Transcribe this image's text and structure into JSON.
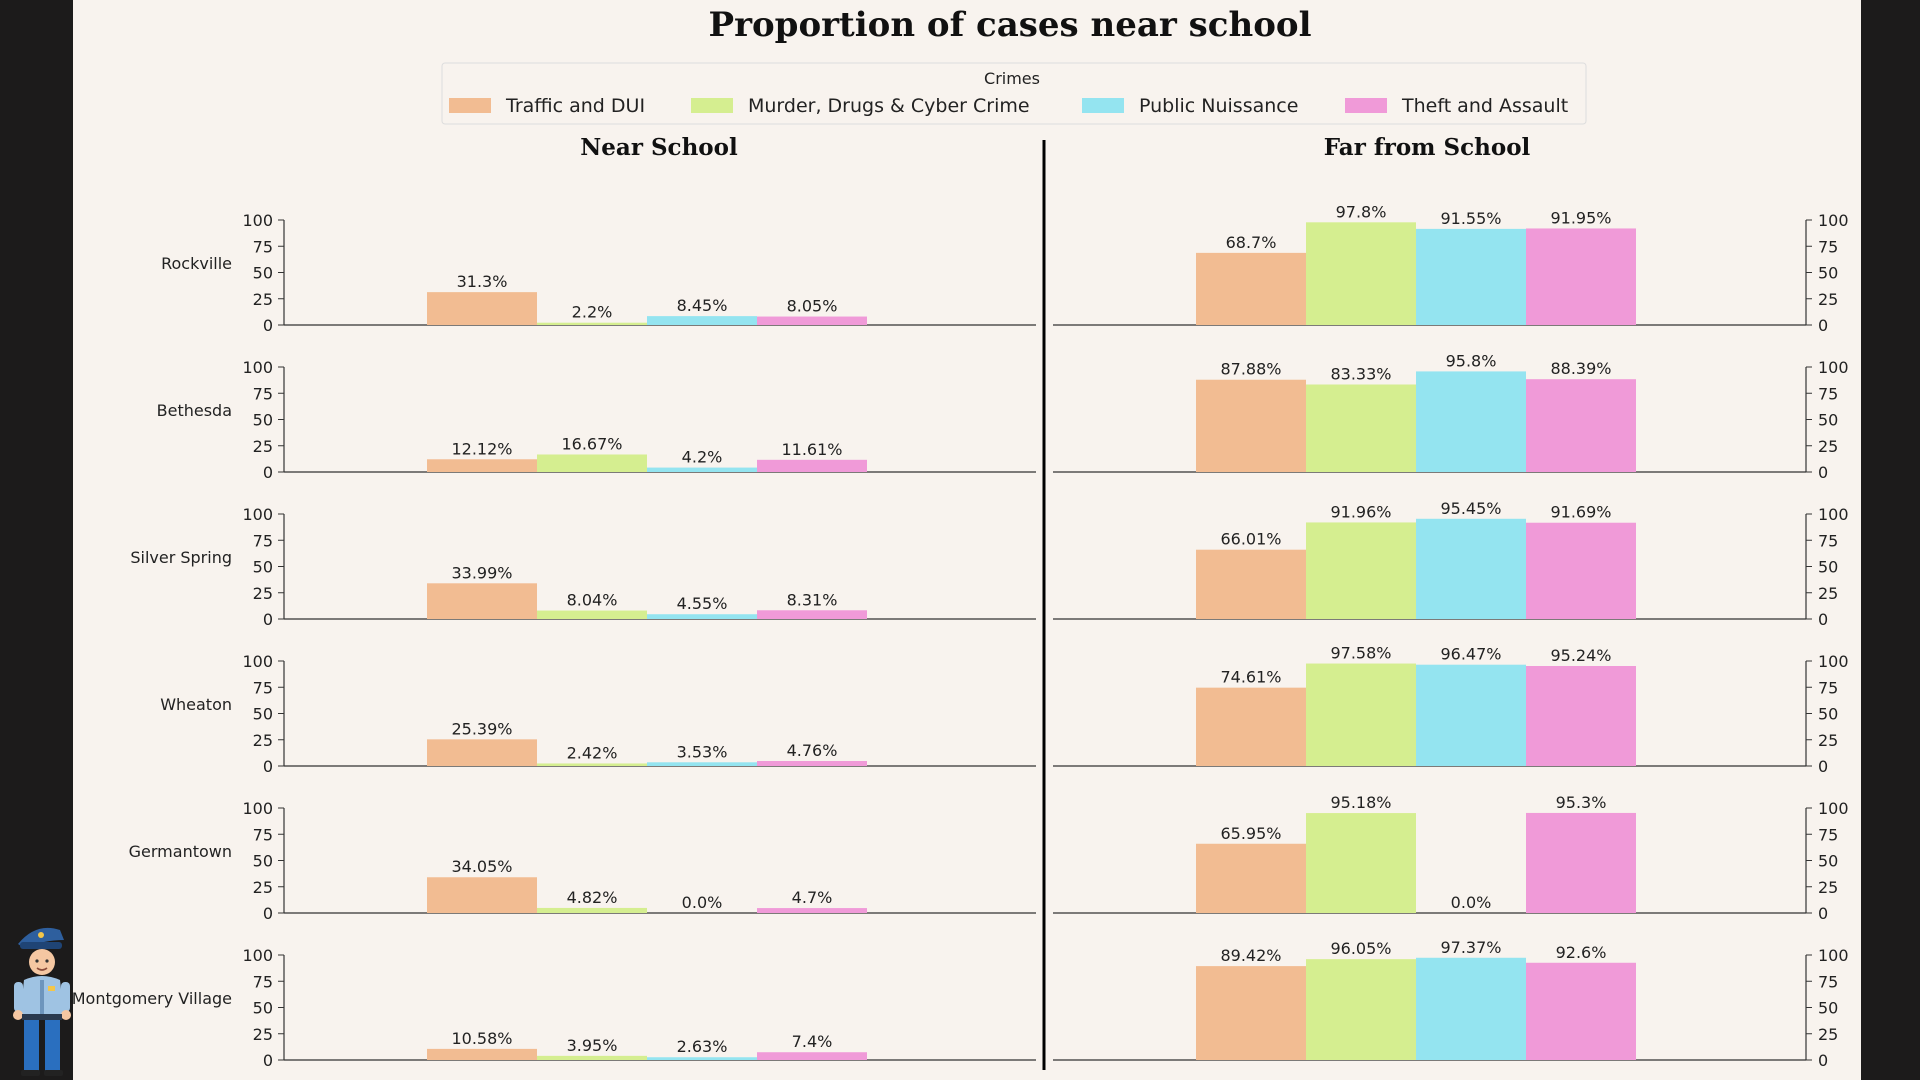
{
  "chart_data": {
    "type": "bar",
    "title": "Proportion of cases near school",
    "legend": {
      "title": "Crimes",
      "placement": "top-center",
      "entries": [
        "Traffic and DUI",
        "Murder, Drugs & Cyber Crime",
        "Public Nuissance",
        "Theft and Assault"
      ]
    },
    "colors": [
      "#f2bc92",
      "#d5ee90",
      "#94e4f0",
      "#f09ad8"
    ],
    "panels": [
      {
        "title": "Near School",
        "key": "near"
      },
      {
        "title": "Far from School",
        "key": "far"
      }
    ],
    "ylim": [
      0,
      100
    ],
    "yticks": [
      0,
      25,
      50,
      75,
      100
    ],
    "grid": false,
    "rows": [
      {
        "city": "Rockville",
        "near": [
          31.3,
          2.2,
          8.45,
          8.05
        ],
        "near_labels": [
          "31.3%",
          "2.2%",
          "8.45%",
          "8.05%"
        ],
        "far": [
          68.7,
          97.8,
          91.55,
          91.95
        ],
        "far_labels": [
          "68.7%",
          "97.8%",
          "91.55%",
          "91.95%"
        ]
      },
      {
        "city": "Bethesda",
        "near": [
          12.12,
          16.67,
          4.2,
          11.61
        ],
        "near_labels": [
          "12.12%",
          "16.67%",
          "4.2%",
          "11.61%"
        ],
        "far": [
          87.88,
          83.33,
          95.8,
          88.39
        ],
        "far_labels": [
          "87.88%",
          "83.33%",
          "95.8%",
          "88.39%"
        ]
      },
      {
        "city": "Silver Spring",
        "near": [
          33.99,
          8.04,
          4.55,
          8.31
        ],
        "near_labels": [
          "33.99%",
          "8.04%",
          "4.55%",
          "8.31%"
        ],
        "far": [
          66.01,
          91.96,
          95.45,
          91.69
        ],
        "far_labels": [
          "66.01%",
          "91.96%",
          "95.45%",
          "91.69%"
        ]
      },
      {
        "city": "Wheaton",
        "near": [
          25.39,
          2.42,
          3.53,
          4.76
        ],
        "near_labels": [
          "25.39%",
          "2.42%",
          "3.53%",
          "4.76%"
        ],
        "far": [
          74.61,
          97.58,
          96.47,
          95.24
        ],
        "far_labels": [
          "74.61%",
          "97.58%",
          "96.47%",
          "95.24%"
        ]
      },
      {
        "city": "Germantown",
        "near": [
          34.05,
          4.82,
          0.0,
          4.7
        ],
        "near_labels": [
          "34.05%",
          "4.82%",
          "0.0%",
          "4.7%"
        ],
        "far": [
          65.95,
          95.18,
          0.0,
          95.3
        ],
        "far_labels": [
          "65.95%",
          "95.18%",
          "0.0%",
          "95.3%"
        ]
      },
      {
        "city": "Montgomery Village",
        "near": [
          10.58,
          3.95,
          2.63,
          7.4
        ],
        "near_labels": [
          "10.58%",
          "3.95%",
          "2.63%",
          "7.4%"
        ],
        "far": [
          89.42,
          96.05,
          97.37,
          92.6
        ],
        "far_labels": [
          "89.42%",
          "96.05%",
          "97.37%",
          "92.6%"
        ]
      }
    ]
  },
  "decor": {
    "mascot_icon": "police-officer-icon"
  }
}
